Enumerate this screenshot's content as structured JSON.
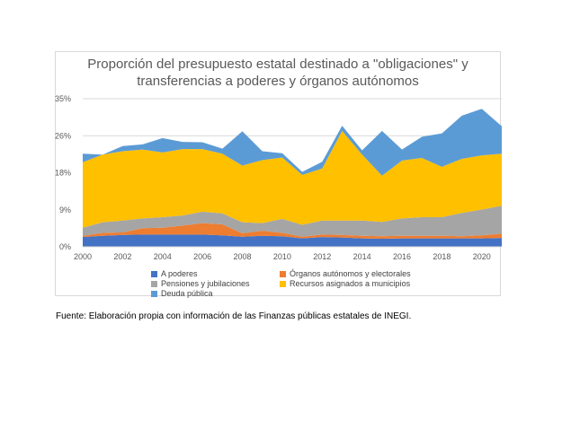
{
  "chart_data": {
    "type": "area",
    "stacked": true,
    "title_lines": [
      "Proporción del presupuesto estatal destinado a \"obligaciones\" y",
      "transferencias a poderes y órganos autónomos"
    ],
    "x": [
      2000,
      2001,
      2002,
      2003,
      2004,
      2005,
      2006,
      2007,
      2008,
      2009,
      2010,
      2011,
      2012,
      2013,
      2014,
      2015,
      2016,
      2017,
      2018,
      2019,
      2020,
      2021
    ],
    "x_ticks": [
      "2000",
      "2002",
      "2004",
      "2006",
      "2008",
      "2010",
      "2012",
      "2014",
      "2016",
      "2018",
      "2020"
    ],
    "x_tick_values": [
      2000,
      2002,
      2004,
      2006,
      2008,
      2010,
      2012,
      2014,
      2016,
      2018,
      2020
    ],
    "y_ticks": [
      "0%",
      "9%",
      "18%",
      "26%",
      "35%"
    ],
    "y_tick_values": [
      0,
      8.75,
      17.5,
      26.25,
      35
    ],
    "ylim": [
      0,
      35
    ],
    "grid": true,
    "legend_position": "bottom",
    "series": [
      {
        "name": "A poderes",
        "color": "#4472c4",
        "values": [
          2.3,
          2.6,
          2.8,
          2.9,
          2.9,
          2.9,
          2.9,
          2.7,
          2.4,
          2.6,
          2.5,
          2.0,
          2.3,
          2.2,
          2.0,
          1.9,
          2.0,
          2.0,
          2.0,
          2.0,
          2.0,
          2.1
        ]
      },
      {
        "name": "Órganos autónomos y electorales",
        "color": "#ed7d31",
        "values": [
          0.3,
          0.7,
          0.6,
          1.5,
          1.6,
          2.1,
          2.7,
          2.6,
          0.8,
          1.2,
          0.8,
          0.4,
          0.6,
          0.6,
          0.6,
          0.6,
          0.6,
          0.6,
          0.6,
          0.5,
          0.7,
          1.0
        ]
      },
      {
        "name": "Pensiones y jubilaciones",
        "color": "#a5a5a5",
        "values": [
          1.9,
          2.5,
          2.8,
          2.3,
          2.5,
          2.4,
          2.7,
          2.6,
          2.6,
          1.8,
          3.3,
          2.8,
          3.3,
          3.4,
          3.6,
          3.4,
          4.1,
          4.4,
          4.4,
          5.5,
          6.1,
          6.6
        ]
      },
      {
        "name": "Recursos asignados a municipios",
        "color": "#ffc000",
        "values": [
          15.5,
          16.0,
          16.4,
          16.3,
          15.3,
          15.7,
          14.8,
          14.1,
          13.4,
          14.9,
          14.5,
          11.8,
          12.3,
          21.2,
          15.6,
          10.9,
          13.7,
          14.0,
          11.9,
          12.8,
          12.8,
          12.3
        ]
      },
      {
        "name": "Deuda pública",
        "color": "#5b9bd5",
        "values": [
          2.0,
          0.0,
          1.2,
          1.2,
          3.4,
          1.7,
          1.6,
          1.2,
          8.1,
          2.1,
          1.0,
          0.7,
          1.6,
          1.2,
          1.0,
          10.6,
          2.6,
          5.0,
          7.9,
          10.2,
          11.0,
          6.5
        ]
      }
    ]
  },
  "source_note": "Fuente: Elaboración propia con información de las Finanzas públicas estatales de INEGI."
}
